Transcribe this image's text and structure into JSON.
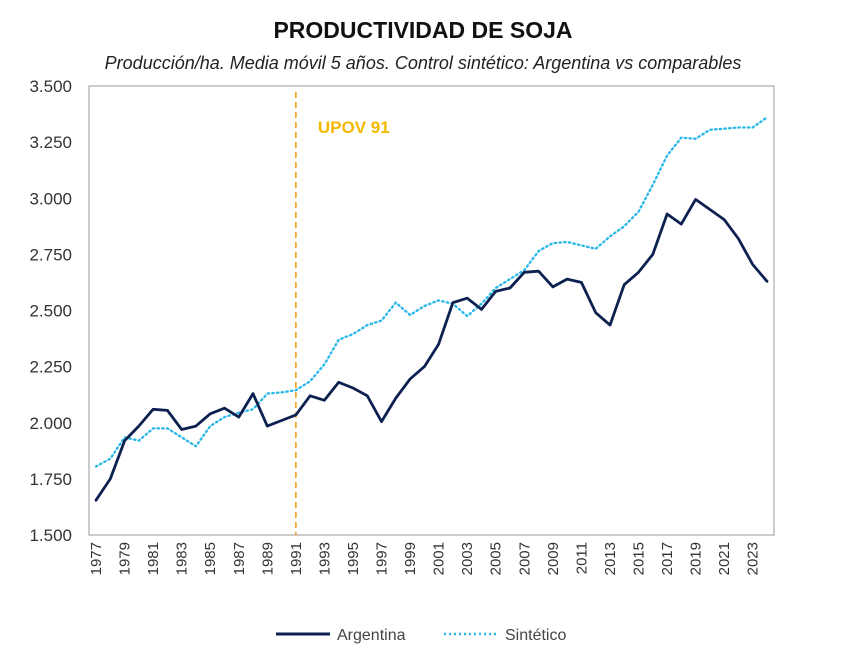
{
  "chart_data": {
    "type": "line",
    "title": "PRODUCTIVIDAD DE SOJA",
    "subtitle": "Producción/ha. Media móvil 5 años. Control sintético: Argentina vs comparables",
    "xlabel": "",
    "ylabel": "",
    "ylim": [
      1500,
      3500
    ],
    "xlim": [
      1977,
      2024
    ],
    "yticks": [
      1500,
      1750,
      2000,
      2250,
      2500,
      2750,
      3000,
      3250,
      3500
    ],
    "ytick_labels": [
      "1.500",
      "1.750",
      "2.000",
      "2.250",
      "2.500",
      "2.750",
      "3.000",
      "3.250",
      "3.500"
    ],
    "xtick_labels": [
      "1977",
      "1979",
      "1981",
      "1983",
      "1985",
      "1987",
      "1989",
      "1991",
      "1993",
      "1995",
      "1997",
      "1999",
      "2001",
      "2003",
      "2005",
      "2007",
      "2009",
      "2011",
      "2013",
      "2015",
      "2017",
      "2019",
      "2021",
      "2023"
    ],
    "grid": false,
    "legend_position": "bottom",
    "x": [
      1977,
      1978,
      1979,
      1980,
      1981,
      1982,
      1983,
      1984,
      1985,
      1986,
      1987,
      1988,
      1989,
      1990,
      1991,
      1992,
      1993,
      1994,
      1995,
      1996,
      1997,
      1998,
      1999,
      2000,
      2001,
      2002,
      2003,
      2004,
      2005,
      2006,
      2007,
      2008,
      2009,
      2010,
      2011,
      2012,
      2013,
      2014,
      2015,
      2016,
      2017,
      2018,
      2019,
      2020,
      2021,
      2022,
      2023,
      2024
    ],
    "series": [
      {
        "name": "Argentina",
        "color": "#0d2150",
        "style": "solid",
        "values": [
          1655,
          1750,
          1920,
          1985,
          2060,
          2055,
          1970,
          1985,
          2040,
          2065,
          2025,
          2130,
          1985,
          2010,
          2035,
          2120,
          2100,
          2180,
          2155,
          2120,
          2005,
          2110,
          2195,
          2250,
          2350,
          2535,
          2555,
          2505,
          2585,
          2600,
          2670,
          2675,
          2605,
          2640,
          2625,
          2490,
          2435,
          2615,
          2670,
          2750,
          2930,
          2885,
          2995,
          2950,
          2905,
          2820,
          2705,
          2630
        ]
      },
      {
        "name": "Sintético",
        "color": "#29b6e8",
        "style": "dotted",
        "values": [
          1805,
          1840,
          1935,
          1920,
          1975,
          1975,
          1935,
          1895,
          1985,
          2025,
          2045,
          2060,
          2130,
          2135,
          2145,
          2185,
          2260,
          2370,
          2395,
          2435,
          2455,
          2535,
          2480,
          2520,
          2545,
          2530,
          2475,
          2530,
          2600,
          2640,
          2680,
          2765,
          2800,
          2805,
          2790,
          2775,
          2830,
          2875,
          2940,
          3060,
          3190,
          3270,
          3265,
          3305,
          3310,
          3315,
          3315,
          3360
        ]
      }
    ],
    "annotations": [
      {
        "text": "UPOV 91",
        "x": 1991,
        "color": "#f5b800",
        "line_color": "#f0a11b"
      }
    ]
  }
}
